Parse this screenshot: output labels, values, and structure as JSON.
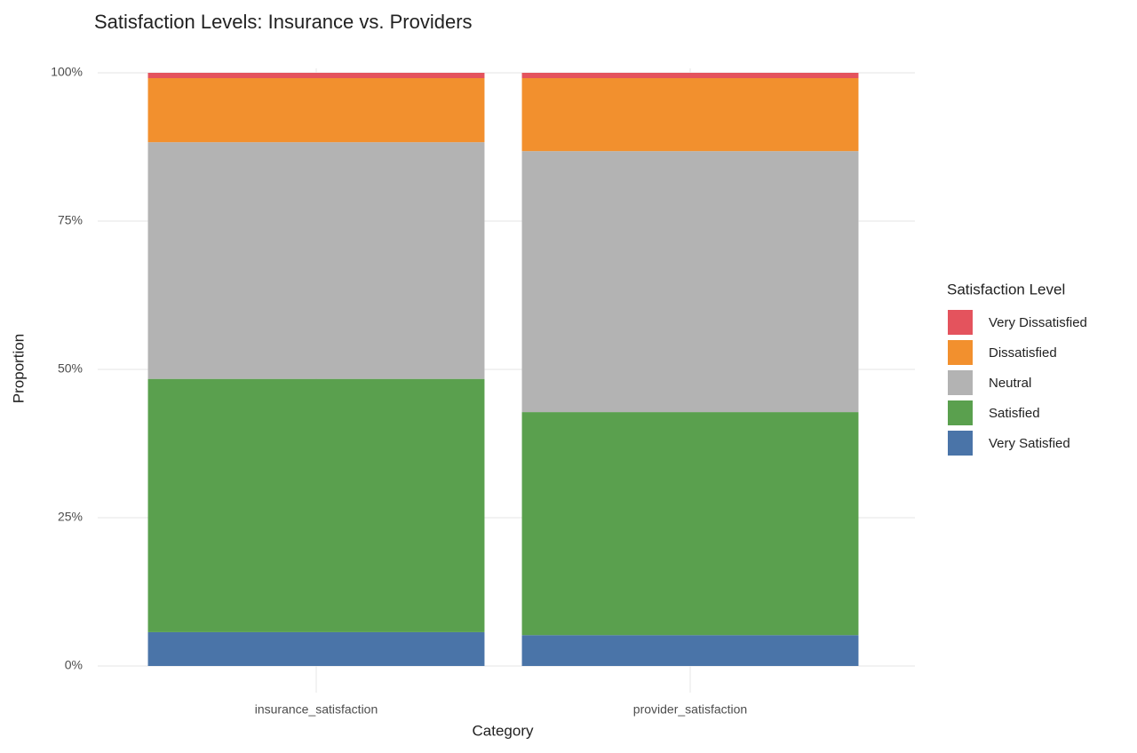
{
  "chart_data": {
    "type": "stacked_bar",
    "title": "Satisfaction Levels: Insurance vs. Providers",
    "x_label": "Category",
    "y_label": "Proportion",
    "legend_title": "Satisfaction Level",
    "legend_position": "right",
    "categories": [
      "insurance_satisfaction",
      "provider_satisfaction"
    ],
    "series": [
      {
        "name": "Very Satisfied",
        "color": "#4a74a8",
        "values": [
          5.7,
          5.2
        ]
      },
      {
        "name": "Satisfied",
        "color": "#5aa04e",
        "values": [
          42.7,
          37.6
        ]
      },
      {
        "name": "Neutral",
        "color": "#b3b3b3",
        "values": [
          39.9,
          44.0
        ]
      },
      {
        "name": "Dissatisfied",
        "color": "#f2902e",
        "values": [
          10.8,
          12.3
        ]
      },
      {
        "name": "Very Dissatisfied",
        "color": "#e4535d",
        "values": [
          0.9,
          0.9
        ]
      }
    ],
    "ylim": [
      0,
      100
    ],
    "yticks": [
      {
        "value": 0,
        "label": "0%"
      },
      {
        "value": 25,
        "label": "25%"
      },
      {
        "value": 50,
        "label": "50%"
      },
      {
        "value": 75,
        "label": "75%"
      },
      {
        "value": 100,
        "label": "100%"
      }
    ],
    "grid": true
  }
}
